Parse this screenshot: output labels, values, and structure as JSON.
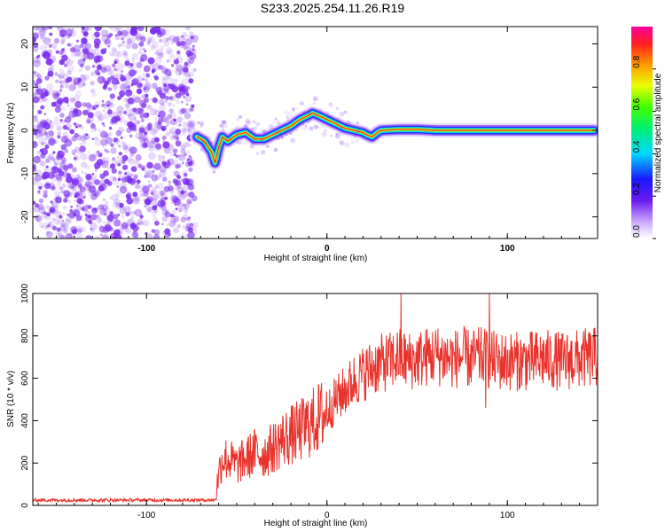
{
  "title": "S233.2025.254.11.26.R19",
  "colors": {
    "snr_line": "#e8322b",
    "spec_dot": "#7b2df0",
    "axis": "#000000"
  },
  "chart_data": [
    {
      "type": "heatmap",
      "name": "spectrogram",
      "xlabel": "Height of straight line (km)",
      "ylabel": "Frequency (Hz)",
      "xlim": [
        -163,
        150
      ],
      "ylim": [
        -25,
        24
      ],
      "xticks": [
        -100,
        0,
        100
      ],
      "xtick_labels": [
        "-100",
        "0",
        "100"
      ],
      "yticks": [
        -20,
        -10,
        0,
        10,
        20
      ],
      "ytick_labels": [
        "-20",
        "-10",
        "0",
        "10",
        "20"
      ],
      "noise_region_x": [
        -163,
        -73
      ],
      "ridge": {
        "x": [
          -72,
          -68,
          -64,
          -62,
          -60,
          -58,
          -55,
          -50,
          -45,
          -40,
          -35,
          -30,
          -25,
          -20,
          -15,
          -10,
          -8,
          -5,
          0,
          5,
          10,
          15,
          20,
          22,
          25,
          28,
          30,
          40,
          50,
          60,
          70,
          80,
          90,
          100,
          110,
          120,
          130,
          140,
          148
        ],
        "y": [
          -1.5,
          -2.5,
          -5,
          -7.5,
          -4,
          -1.5,
          -2.5,
          -1,
          -0.5,
          -2,
          -2,
          -1,
          0,
          1,
          2.5,
          3.5,
          4,
          3.5,
          2.5,
          1.5,
          0.5,
          0,
          -0.5,
          -1,
          -1.5,
          -0.5,
          0,
          0.2,
          0.2,
          0,
          0,
          0,
          0,
          0,
          0,
          0,
          0,
          0,
          0
        ]
      },
      "colorbar": {
        "label": "Normalized spectral amplitude",
        "ticks": [
          "0.0",
          "0.2",
          "0.4",
          "0.6",
          "0.8"
        ],
        "tick_values": [
          0.0,
          0.2,
          0.4,
          0.6,
          0.8
        ],
        "range": [
          0,
          1
        ],
        "colormap": "rainbow"
      }
    },
    {
      "type": "line",
      "name": "snr",
      "xlabel": "Height of straight line (km)",
      "ylabel": "SNR (10 * v/v)",
      "xlim": [
        -163,
        150
      ],
      "ylim": [
        0,
        1000
      ],
      "xticks": [
        -100,
        0,
        100
      ],
      "xtick_labels": [
        "-100",
        "0",
        "100"
      ],
      "yticks": [
        0,
        200,
        400,
        600,
        800,
        1000
      ],
      "ytick_labels": [
        "0",
        "200",
        "400",
        "600",
        "800",
        "1000"
      ],
      "x": [
        -163,
        -140,
        -120,
        -100,
        -80,
        -62,
        -60,
        -58,
        -55,
        -50,
        -45,
        -40,
        -35,
        -30,
        -25,
        -20,
        -15,
        -10,
        -5,
        0,
        5,
        10,
        15,
        20,
        25,
        30,
        35,
        40,
        45,
        50,
        55,
        60,
        65,
        70,
        75,
        80,
        85,
        90,
        95,
        100,
        110,
        120,
        130,
        140,
        150
      ],
      "y": [
        25,
        25,
        25,
        25,
        25,
        25,
        150,
        220,
        220,
        190,
        220,
        250,
        240,
        270,
        310,
        330,
        350,
        380,
        410,
        440,
        500,
        540,
        590,
        620,
        650,
        670,
        680,
        700,
        680,
        690,
        700,
        710,
        700,
        690,
        700,
        690,
        700,
        690,
        680,
        680,
        680,
        690,
        680,
        690,
        700
      ],
      "spikes": [
        {
          "x": 41,
          "y": 1000
        },
        {
          "x": 90,
          "y": 1000
        },
        {
          "x": 88,
          "y": 460
        }
      ]
    }
  ]
}
